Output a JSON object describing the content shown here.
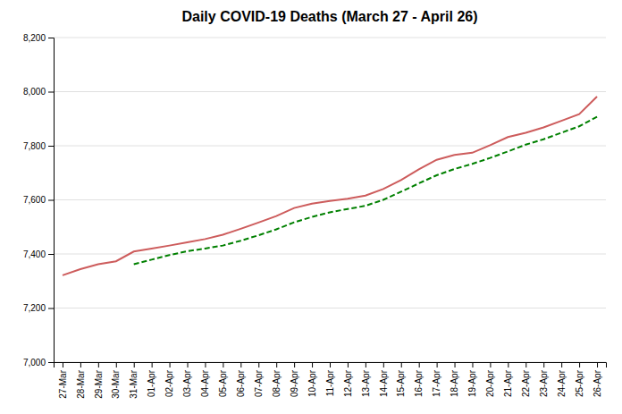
{
  "chart_data": {
    "type": "line",
    "title": "Daily COVID-19 Deaths (March 27 - April 26)",
    "categories": [
      "27-Mar",
      "28-Mar",
      "29-Mar",
      "30-Mar",
      "31-Mar",
      "01-Apr",
      "02-Apr",
      "03-Apr",
      "04-Apr",
      "05-Apr",
      "06-Apr",
      "07-Apr",
      "08-Apr",
      "09-Apr",
      "10-Apr",
      "11-Apr",
      "12-Apr",
      "13-Apr",
      "14-Apr",
      "15-Apr",
      "16-Apr",
      "17-Apr",
      "18-Apr",
      "19-Apr",
      "20-Apr",
      "21-Apr",
      "22-Apr",
      "23-Apr",
      "24-Apr",
      "25-Apr",
      "26-Apr"
    ],
    "series": [
      {
        "color": "#CD5C5C",
        "line_style": "solid",
        "values": [
          7321,
          7344,
          7362,
          7373,
          7409,
          7420,
          7431,
          7443,
          7455,
          7471,
          7493,
          7516,
          7540,
          7570,
          7586,
          7596,
          7604,
          7616,
          7640,
          7673,
          7713,
          7748,
          7766,
          7774,
          7802,
          7832,
          7848,
          7868,
          7892,
          7917,
          7982
        ]
      },
      {
        "color": "#008000",
        "line_style": "dashed",
        "values": [
          null,
          null,
          null,
          null,
          7362,
          7379,
          7396,
          7410,
          7420,
          7431,
          7449,
          7469,
          7491,
          7517,
          7537,
          7554,
          7566,
          7578,
          7600,
          7630,
          7661,
          7691,
          7714,
          7733,
          7755,
          7779,
          7804,
          7824,
          7848,
          7872,
          7907
        ]
      }
    ],
    "ylim": [
      7000,
      8200
    ],
    "yticks": [
      {
        "value": 7000,
        "label": "7,000"
      },
      {
        "value": 7200,
        "label": "7,200"
      },
      {
        "value": 7400,
        "label": "7,400"
      },
      {
        "value": 7600,
        "label": "7,600"
      },
      {
        "value": 7800,
        "label": "7,800"
      },
      {
        "value": 8000,
        "label": "8,000"
      },
      {
        "value": 8200,
        "label": "8,200"
      }
    ],
    "grid": true
  }
}
